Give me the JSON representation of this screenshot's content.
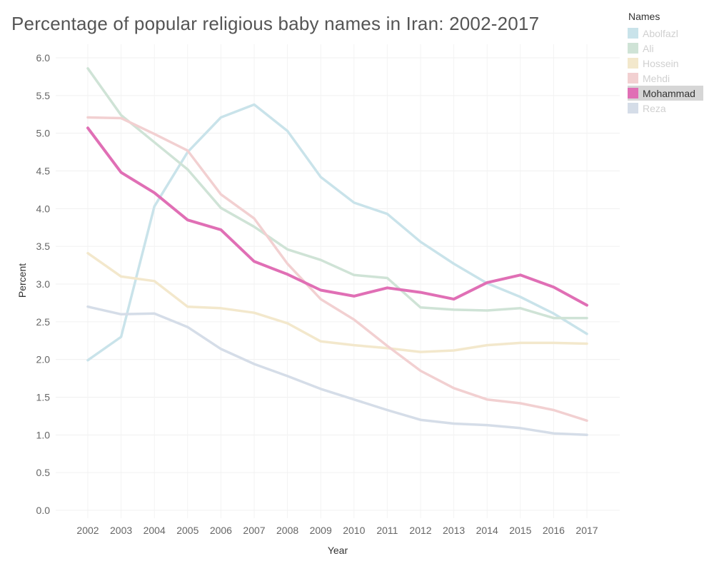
{
  "title": "Percentage of popular religious baby names in Iran: 2002-2017",
  "legend": {
    "title": "Names",
    "items": [
      {
        "label": "Abolfazl",
        "color": "#c9e3ea",
        "selected": false
      },
      {
        "label": "Ali",
        "color": "#cfe3d6",
        "selected": false
      },
      {
        "label": "Hossein",
        "color": "#f3e8cc",
        "selected": false
      },
      {
        "label": "Mehdi",
        "color": "#f2d0d1",
        "selected": false
      },
      {
        "label": "Mohammad",
        "color": "#e06fb5",
        "selected": true
      },
      {
        "label": "Reza",
        "color": "#d5dde8",
        "selected": false
      }
    ]
  },
  "chart_data": {
    "type": "line",
    "title": "Percentage of popular religious baby names in Iran: 2002-2017",
    "xlabel": "Year",
    "ylabel": "Percent",
    "x": [
      2002,
      2003,
      2004,
      2005,
      2006,
      2007,
      2008,
      2009,
      2010,
      2011,
      2012,
      2013,
      2014,
      2015,
      2016,
      2017
    ],
    "ylim": [
      0,
      6
    ],
    "yticks": [
      "0.0",
      "0.5",
      "1.0",
      "1.5",
      "2.0",
      "2.5",
      "3.0",
      "3.5",
      "4.0",
      "4.5",
      "5.0",
      "5.5",
      "6.0"
    ],
    "grid": true,
    "legend_position": "top-right",
    "series": [
      {
        "name": "Abolfazl",
        "color": "#c9e3ea",
        "values": [
          1.99,
          2.3,
          4.03,
          4.75,
          5.21,
          5.38,
          5.03,
          4.42,
          4.08,
          3.93,
          3.56,
          3.27,
          3.01,
          2.83,
          2.61,
          2.34
        ]
      },
      {
        "name": "Ali",
        "color": "#cfe3d6",
        "values": [
          5.86,
          5.24,
          4.88,
          4.52,
          4.01,
          3.76,
          3.46,
          3.32,
          3.12,
          3.08,
          2.69,
          2.66,
          2.65,
          2.68,
          2.55,
          2.55
        ]
      },
      {
        "name": "Hossein",
        "color": "#f3e8cc",
        "values": [
          3.41,
          3.1,
          3.04,
          2.7,
          2.68,
          2.62,
          2.48,
          2.24,
          2.19,
          2.15,
          2.1,
          2.12,
          2.19,
          2.22,
          2.22,
          2.21
        ]
      },
      {
        "name": "Mehdi",
        "color": "#f2d0d1",
        "values": [
          5.21,
          5.2,
          4.99,
          4.77,
          4.19,
          3.87,
          3.27,
          2.8,
          2.53,
          2.18,
          1.85,
          1.62,
          1.47,
          1.42,
          1.33,
          1.19
        ]
      },
      {
        "name": "Reza",
        "color": "#d5dde8",
        "values": [
          2.7,
          2.6,
          2.61,
          2.43,
          2.14,
          1.94,
          1.78,
          1.61,
          1.47,
          1.33,
          1.2,
          1.15,
          1.13,
          1.09,
          1.02,
          1.0
        ]
      },
      {
        "name": "Mohammad",
        "color": "#e06fb5",
        "values": [
          5.07,
          4.48,
          4.21,
          3.85,
          3.72,
          3.3,
          3.13,
          2.92,
          2.84,
          2.95,
          2.89,
          2.8,
          3.02,
          3.12,
          2.96,
          2.72
        ]
      }
    ]
  }
}
